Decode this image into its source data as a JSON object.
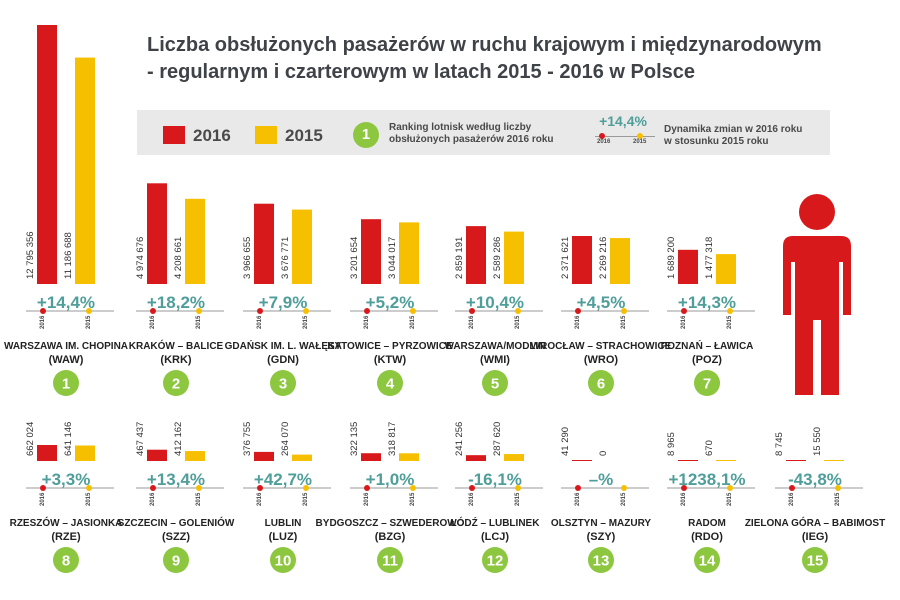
{
  "title": {
    "line1": "Liczba obsłużonych pasażerów w ruchu krajowym i międzynarodowym",
    "line2": "- regularnym i czarterowym w latach 2015 - 2016 w Polsce"
  },
  "legend": {
    "label_2016": "2016",
    "label_2015": "2015",
    "rank_badge": "1",
    "rank_text_line1": "Ranking lotnisk według liczby",
    "rank_text_line2": "obsłużonych pasażerów 2016 roku",
    "dynamics_example": "+14,4%",
    "dynamics_text_line1": "Dynamika zmian w 2016 roku",
    "dynamics_text_line2": "w stosunku 2015 roku",
    "mini_year_2016": "2016",
    "mini_year_2015": "2015"
  },
  "colors": {
    "bar_2016": "#d7191c",
    "bar_2015": "#f6c000",
    "badge": "#8dc63f",
    "dynamics_text": "#4f9e9a",
    "title": "#3f4348",
    "person_icon": "#d7191c"
  },
  "icons": [
    "person-icon"
  ],
  "chart_data": {
    "type": "bar",
    "series_years": [
      "2016",
      "2015"
    ],
    "airports": [
      {
        "rank": "1",
        "name": "WARSZAWA IM. CHOPINA",
        "code": "(WAW)",
        "v2016": 12795356,
        "v2015": 11186688,
        "l2016": "12 795 356",
        "l2015": "11 186 688",
        "change": "+14,4%"
      },
      {
        "rank": "2",
        "name": "KRAKÓW – BALICE",
        "code": "(KRK)",
        "v2016": 4974676,
        "v2015": 4208661,
        "l2016": "4 974 676",
        "l2015": "4 208 661",
        "change": "+18,2%"
      },
      {
        "rank": "3",
        "name": "GDAŃSK IM. L. WAŁĘSY",
        "code": "(GDN)",
        "v2016": 3966655,
        "v2015": 3676771,
        "l2016": "3 966 655",
        "l2015": "3 676 771",
        "change": "+7,9%"
      },
      {
        "rank": "4",
        "name": "KATOWICE – PYRZOWICE",
        "code": "(KTW)",
        "v2016": 3201654,
        "v2015": 3044017,
        "l2016": "3 201 654",
        "l2015": "3 044 017",
        "change": "+5,2%"
      },
      {
        "rank": "5",
        "name": "WARSZAWA/MODLIN",
        "code": "(WMI)",
        "v2016": 2859191,
        "v2015": 2589286,
        "l2016": "2 859 191",
        "l2015": "2 589 286",
        "change": "+10,4%"
      },
      {
        "rank": "6",
        "name": "WROCŁAW – STRACHOWICE",
        "code": "(WRO)",
        "v2016": 2371621,
        "v2015": 2269216,
        "l2016": "2 371 621",
        "l2015": "2 269 216",
        "change": "+4,5%"
      },
      {
        "rank": "7",
        "name": "POZNAŃ – ŁAWICA",
        "code": "(POZ)",
        "v2016": 1689200,
        "v2015": 1477318,
        "l2016": "1 689 200",
        "l2015": "1 477 318",
        "change": "+14,3%"
      },
      {
        "rank": "8",
        "name": "RZESZÓW – JASIONKA",
        "code": "(RZE)",
        "v2016": 662024,
        "v2015": 641146,
        "l2016": "662 024",
        "l2015": "641 146",
        "change": "+3,3%"
      },
      {
        "rank": "9",
        "name": "SZCZECIN – GOLENIÓW",
        "code": "(SZZ)",
        "v2016": 467437,
        "v2015": 412162,
        "l2016": "467 437",
        "l2015": "412 162",
        "change": "+13,4%"
      },
      {
        "rank": "10",
        "name": "LUBLIN",
        "code": "(LUZ)",
        "v2016": 376755,
        "v2015": 264070,
        "l2016": "376 755",
        "l2015": "264 070",
        "change": "+42,7%"
      },
      {
        "rank": "11",
        "name": "BYDGOSZCZ – SZWEDEROWO",
        "code": "(BZG)",
        "v2016": 322135,
        "v2015": 318817,
        "l2016": "322 135",
        "l2015": "318 817",
        "change": "+1,0%"
      },
      {
        "rank": "12",
        "name": "ŁÓDŹ – LUBLINEK",
        "code": "(LCJ)",
        "v2016": 241256,
        "v2015": 287620,
        "l2016": "241 256",
        "l2015": "287 620",
        "change": "-16,1%"
      },
      {
        "rank": "13",
        "name": "OLSZTYN – MAZURY",
        "code": "(SZY)",
        "v2016": 41290,
        "v2015": 0,
        "l2016": "41 290",
        "l2015": "0",
        "change": "–%"
      },
      {
        "rank": "14",
        "name": "RADOM",
        "code": "(RDO)",
        "v2016": 8965,
        "v2015": 670,
        "l2016": "8 965",
        "l2015": "670",
        "change": "+1238,1%"
      },
      {
        "rank": "15",
        "name": "ZIELONA GÓRA – BABIMOST",
        "code": "(IEG)",
        "v2016": 8745,
        "v2015": 15550,
        "l2016": "8 745",
        "l2015": "15 550",
        "change": "-43,8%"
      }
    ]
  }
}
